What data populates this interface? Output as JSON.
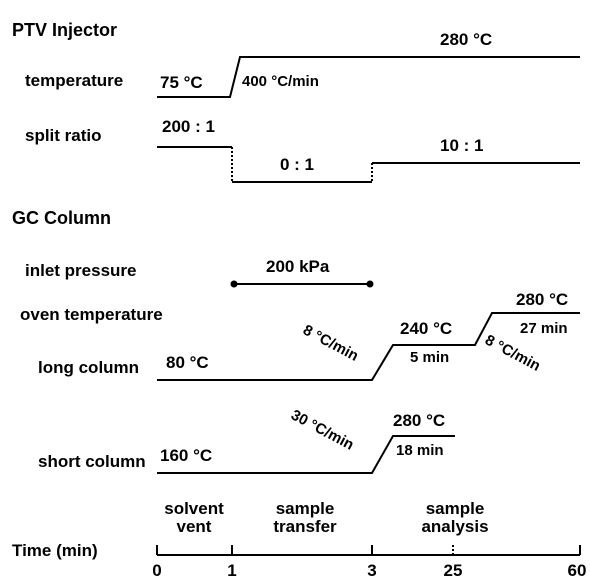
{
  "injector": {
    "title": "PTV Injector",
    "temperature": {
      "label": "temperature",
      "start": "75 °C",
      "rate": "400 °C/min",
      "end": "280 °C"
    },
    "split_ratio": {
      "label": "split ratio",
      "first": "200 : 1",
      "second": "0 : 1",
      "third": "10 : 1"
    }
  },
  "column": {
    "title": "GC Column",
    "inlet_pressure": {
      "label": "inlet pressure",
      "value": "200 kPa"
    },
    "oven_temperature": {
      "label": "oven temperature"
    },
    "long_column": {
      "label": "long column",
      "start": "80 °C",
      "rate1": "8 °C/min",
      "plateau1": "240 °C",
      "hold1": "5 min",
      "rate2": "8 °C/min",
      "plateau2": "280 °C",
      "hold2": "27 min"
    },
    "short_column": {
      "label": "short column",
      "start": "160 °C",
      "rate": "30 °C/min",
      "plateau": "280 °C",
      "hold": "18 min"
    }
  },
  "time_axis": {
    "label": "Time (min)",
    "ticks": [
      "0",
      "1",
      "3",
      "25",
      "60"
    ],
    "phases": [
      [
        "solvent",
        "vent"
      ],
      [
        "sample",
        "transfer"
      ],
      [
        "sample",
        "analysis"
      ]
    ]
  }
}
